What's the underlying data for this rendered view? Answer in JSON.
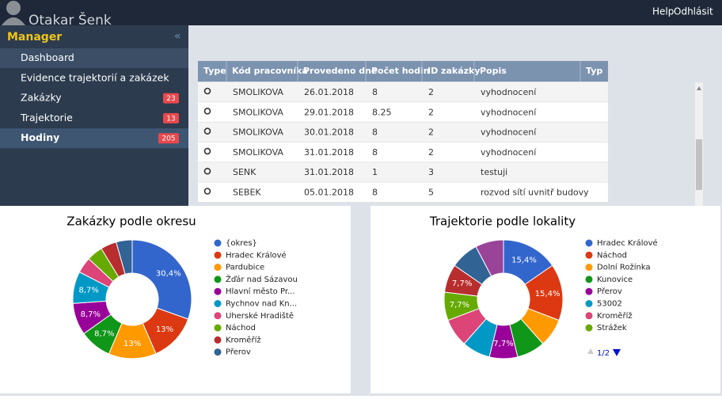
{
  "header": {
    "user": "Otakar Šenk",
    "links": [
      "Help",
      "Odhlásit"
    ]
  },
  "sidebar": {
    "title": "Manager",
    "items": [
      {
        "label": "Dashboard"
      },
      {
        "label": "Evidence trajektorií a zakázek"
      },
      {
        "label": "Zakázky",
        "badge": 23
      },
      {
        "label": "Trajektorie",
        "badge": 13
      },
      {
        "label": "Hodiny",
        "badge": 205
      }
    ]
  },
  "table": {
    "columns": [
      "Type",
      "Kód pracovníka",
      "Provedeno dne",
      "Počet hodin",
      "ID zakázky",
      "Popis",
      "Typ"
    ],
    "rows": [
      [
        "SMOLIKOVA",
        "26.01.2018",
        "8",
        "2",
        "vyhodnocení"
      ],
      [
        "SMOLIKOVA",
        "29.01.2018",
        "8.25",
        "2",
        "vyhodnocení"
      ],
      [
        "SMOLIKOVA",
        "30.01.2018",
        "8",
        "2",
        "vyhodnocení"
      ],
      [
        "SMOLIKOVA",
        "31.01.2018",
        "8",
        "2",
        "vyhodnocení"
      ],
      [
        "SENK",
        "31.01.2018",
        "1",
        "3",
        "testuji"
      ],
      [
        "SEBEK",
        "05.01.2018",
        "8",
        "5",
        "rozvod sítí uvnitř budovy"
      ]
    ]
  },
  "chart_data": [
    {
      "type": "pie",
      "title": "Zakázky podle okresu",
      "categories": [
        "{okres}",
        "Hradec Králové",
        "Pardubice",
        "Žďár nad Sázavou",
        "Hlavní město Pr...",
        "Rychnov nad Kn...",
        "Uherské Hradiště",
        "Náchod",
        "Kroměříž",
        "Přerov"
      ],
      "values": [
        30.4,
        13,
        13,
        8.7,
        8.7,
        8.7,
        4.35,
        4.35,
        4.35,
        4.35
      ],
      "value_labels": [
        "30,4%",
        "13%",
        "13%",
        "8,7%",
        "8,7%",
        "8,7%",
        null,
        null,
        null,
        null
      ],
      "colors": [
        "#3366cc",
        "#dc3912",
        "#ff9900",
        "#109618",
        "#990099",
        "#0099c6",
        "#dd4477",
        "#66aa00",
        "#b82e2e",
        "#316395"
      ]
    },
    {
      "type": "pie",
      "title": "Trajektorie podle lokality",
      "categories": [
        "Hradec Králové",
        "Náchod",
        "Dolní Rožínka",
        "Kunovice",
        "Přerov",
        "53002",
        "Kroměříž",
        "Strážek",
        null,
        null,
        null
      ],
      "values": [
        15.4,
        15.4,
        7.7,
        7.7,
        7.7,
        7.7,
        7.7,
        7.7,
        7.7,
        7.7,
        7.7
      ],
      "value_labels": [
        "15,4%",
        "15,4%",
        null,
        null,
        "7,7%",
        null,
        null,
        "7,7%",
        "7,7%",
        null,
        null
      ],
      "colors": [
        "#3366cc",
        "#dc3912",
        "#ff9900",
        "#109618",
        "#990099",
        "#0099c6",
        "#dd4477",
        "#66aa00",
        "#b82e2e",
        "#316395",
        "#994499"
      ],
      "legend_page": "1/2"
    }
  ]
}
